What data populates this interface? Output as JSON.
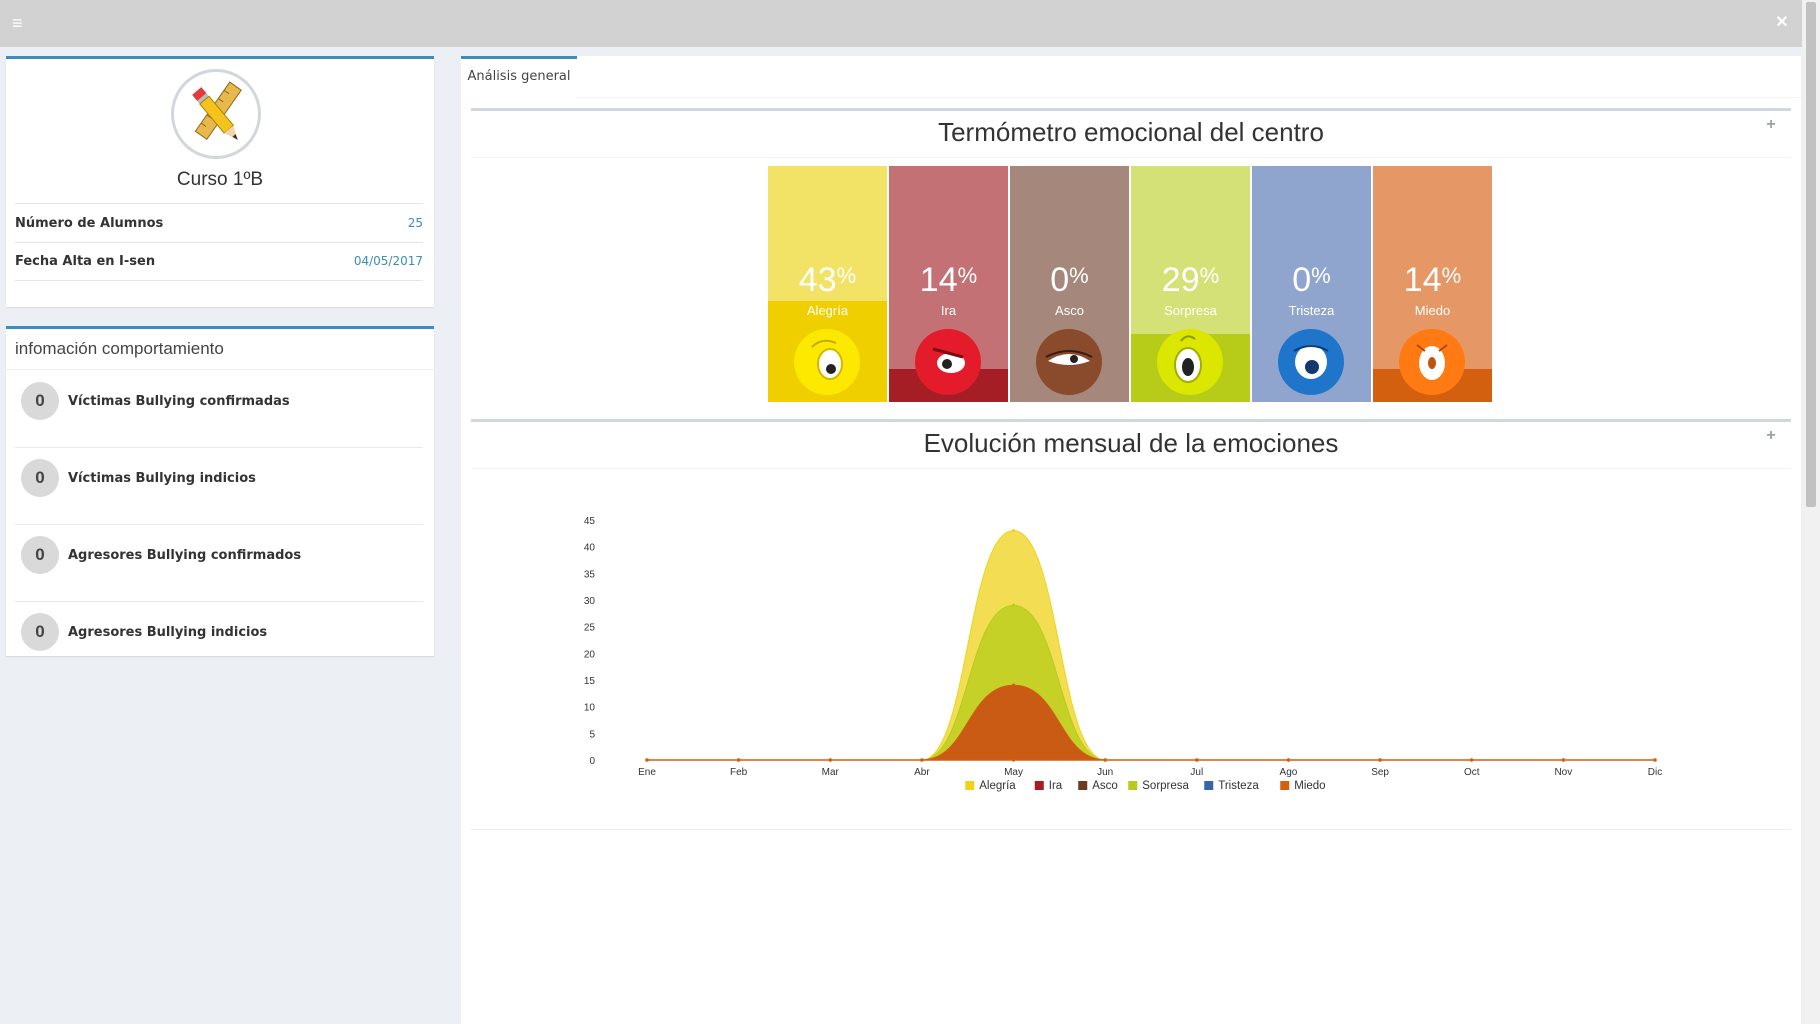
{
  "topbar": {
    "menu_icon": "≡",
    "close_icon": "✕"
  },
  "profile": {
    "name": "Curso 1ºB",
    "rows": [
      {
        "label": "Número de Alumnos",
        "value": "25"
      },
      {
        "label": "Fecha Alta en I-sen",
        "value": "04/05/2017"
      }
    ]
  },
  "behavior": {
    "title": "infomación comportamiento",
    "items": [
      {
        "count": "0",
        "label": "Víctimas Bullying confirmadas"
      },
      {
        "count": "0",
        "label": "Víctimas Bullying indicios"
      },
      {
        "count": "0",
        "label": "Agresores Bullying confirmados"
      },
      {
        "count": "0",
        "label": "Agresores Bullying indicios"
      }
    ]
  },
  "tabs": [
    {
      "label": "Análisis general"
    }
  ],
  "thermometer": {
    "title": "Termómetro emocional del centro",
    "plus": "+",
    "cards": [
      {
        "name": "Alegría",
        "value": "43",
        "unit": "%",
        "color": "#f2e266",
        "bottom_color": "#efcf00",
        "fill": 0.43
      },
      {
        "name": "Ira",
        "value": "14",
        "unit": "%",
        "color": "#c47176",
        "bottom_color": "#a51d25",
        "fill": 0.14
      },
      {
        "name": "Asco",
        "value": "0",
        "unit": "%",
        "color": "#a6877b",
        "bottom_color": "#7a4a35",
        "fill": 0.0
      },
      {
        "name": "Sorpresa",
        "value": "29",
        "unit": "%",
        "color": "#d4e176",
        "bottom_color": "#b7cc18",
        "fill": 0.29
      },
      {
        "name": "Tristeza",
        "value": "0",
        "unit": "%",
        "color": "#90a5cd",
        "bottom_color": "#1c6fc2",
        "fill": 0.0
      },
      {
        "name": "Miedo",
        "value": "14",
        "unit": "%",
        "color": "#e69766",
        "bottom_color": "#d2600f",
        "fill": 0.14
      }
    ]
  },
  "evolution": {
    "title": "Evolución mensual de la emociones",
    "plus": "+"
  },
  "chart_data": {
    "type": "area",
    "categories": [
      "Ene",
      "Feb",
      "Mar",
      "Abr",
      "May",
      "Jun",
      "Jul",
      "Ago",
      "Sep",
      "Oct",
      "Nov",
      "Dic"
    ],
    "ylim": [
      0,
      45
    ],
    "yticks": [
      0,
      5,
      10,
      15,
      20,
      25,
      30,
      35,
      40,
      45
    ],
    "series": [
      {
        "name": "Alegría",
        "color": "#efd31a",
        "values": [
          0,
          0,
          0,
          0,
          43,
          0,
          0,
          0,
          0,
          0,
          0,
          0
        ]
      },
      {
        "name": "Ira",
        "color": "#a51d25",
        "values": [
          0,
          0,
          0,
          0,
          14,
          0,
          0,
          0,
          0,
          0,
          0,
          0
        ]
      },
      {
        "name": "Asco",
        "color": "#6b3a22",
        "values": [
          0,
          0,
          0,
          0,
          0,
          0,
          0,
          0,
          0,
          0,
          0,
          0
        ]
      },
      {
        "name": "Sorpresa",
        "color": "#b7cc18",
        "values": [
          0,
          0,
          0,
          0,
          29,
          0,
          0,
          0,
          0,
          0,
          0,
          0
        ]
      },
      {
        "name": "Tristeza",
        "color": "#3a64a8",
        "values": [
          0,
          0,
          0,
          0,
          0,
          0,
          0,
          0,
          0,
          0,
          0,
          0
        ]
      },
      {
        "name": "Miedo",
        "color": "#d2600f",
        "values": [
          0,
          0,
          0,
          0,
          14,
          0,
          0,
          0,
          0,
          0,
          0,
          0
        ]
      }
    ],
    "legend_position": "bottom"
  }
}
